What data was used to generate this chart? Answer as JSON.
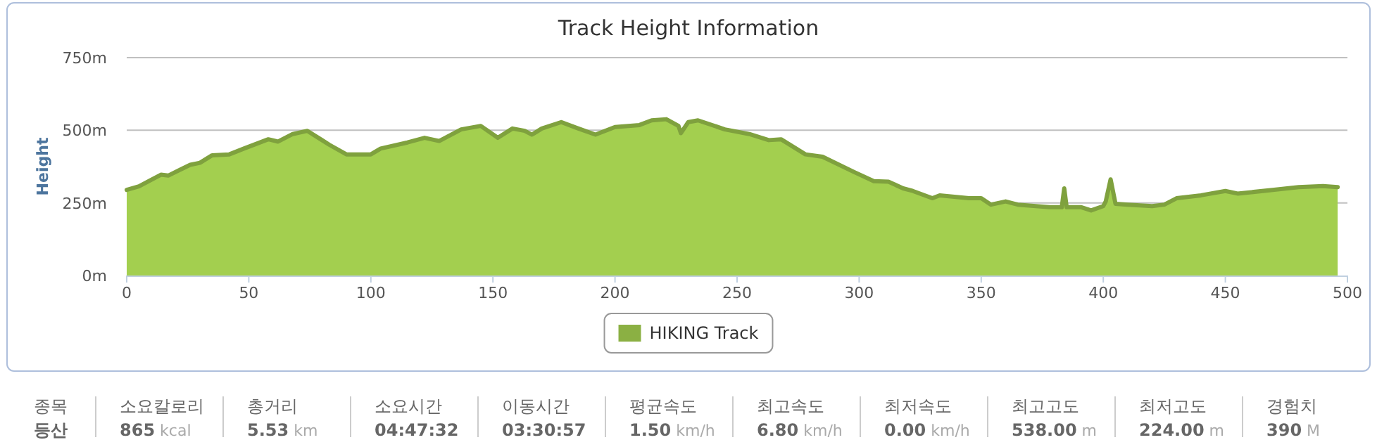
{
  "chart_data": [
    {
      "type": "area",
      "title": "Track Height Information",
      "ylabel": "Height",
      "x": [
        0,
        5,
        14,
        17,
        26,
        30,
        35,
        42,
        48,
        58,
        62,
        68,
        74,
        80,
        83,
        90,
        100,
        104,
        115,
        122,
        128,
        137,
        145,
        152,
        158,
        163,
        166,
        170,
        178,
        185,
        192,
        200,
        210,
        215,
        221,
        226,
        227,
        230,
        234,
        245,
        255,
        263,
        268,
        278,
        285,
        298,
        306,
        312,
        318,
        322,
        330,
        333,
        345,
        350,
        354,
        360,
        365,
        378,
        383,
        384,
        385,
        391,
        395,
        400,
        401,
        403,
        405,
        410,
        420,
        425,
        430,
        440,
        450,
        455,
        470,
        480,
        490,
        496
      ],
      "series": [
        {
          "name": "HIKING Track",
          "color": "#a3cf4f",
          "values": [
            295,
            307,
            347,
            344,
            381,
            388,
            414,
            417,
            437,
            469,
            461,
            487,
            498,
            466,
            450,
            417,
            417,
            437,
            458,
            474,
            463,
            503,
            515,
            474,
            506,
            498,
            485,
            506,
            528,
            506,
            485,
            511,
            518,
            534,
            538,
            515,
            490,
            528,
            534,
            503,
            487,
            466,
            469,
            417,
            409,
            356,
            325,
            323,
            300,
            291,
            266,
            276,
            266,
            266,
            244,
            255,
            244,
            235,
            235,
            300,
            235,
            235,
            224,
            239,
            255,
            331,
            247,
            244,
            239,
            244,
            266,
            276,
            291,
            282,
            295,
            304,
            308,
            304
          ]
        }
      ],
      "xlim": [
        0,
        500
      ],
      "xticks": [
        0,
        50,
        100,
        150,
        200,
        250,
        300,
        350,
        400,
        450,
        500
      ],
      "ylim": [
        0,
        750
      ],
      "yticks": [
        {
          "value": 0,
          "label": "0m"
        },
        {
          "value": 250,
          "label": "250m"
        },
        {
          "value": 500,
          "label": "500m"
        },
        {
          "value": 750,
          "label": "750m"
        }
      ],
      "grid": "y",
      "legend": "bottom"
    },
    {
      "type": "other",
      "categories": [
        "종목",
        "소요칼로리",
        "총거리",
        "소요시간",
        "이동시간",
        "평균속도",
        "최고속도",
        "최저속도",
        "최고고도",
        "최저고도",
        "경험치"
      ],
      "value_labels": [
        "등산",
        "865 kcal",
        "5.53 km",
        "04:47:32",
        "03:30:57",
        "1.50 km/h",
        "6.80 km/h",
        "0.00 km/h",
        "538.00 m",
        "224.00 m",
        "390 M"
      ]
    }
  ]
}
